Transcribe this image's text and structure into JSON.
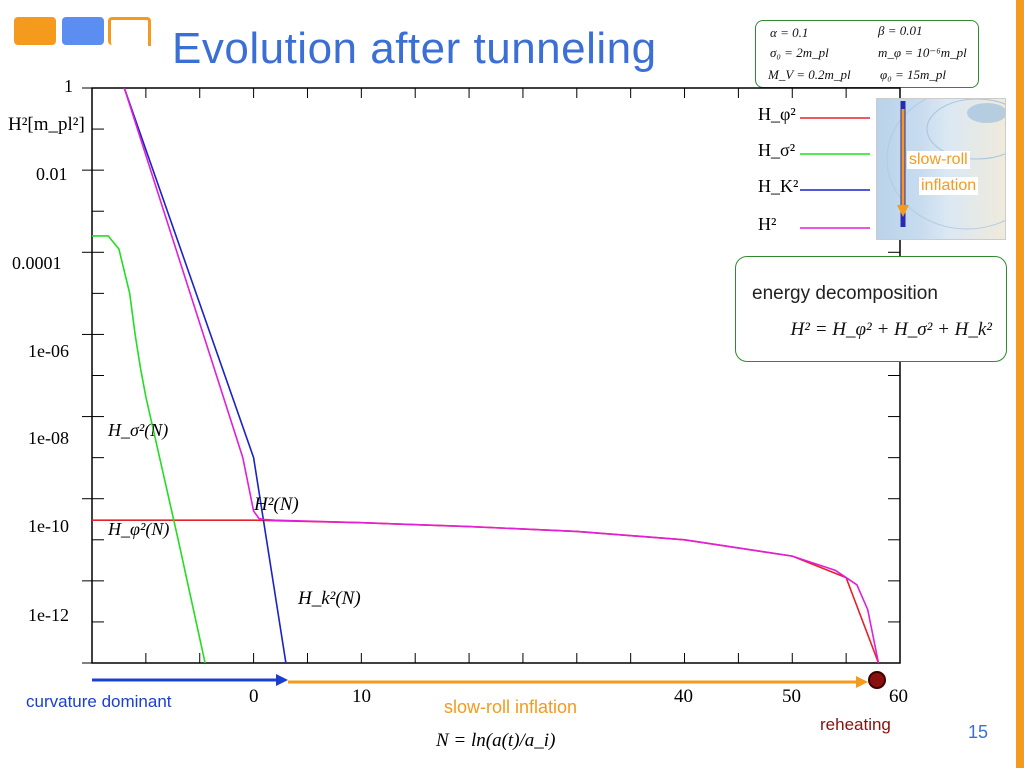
{
  "slide": {
    "title": "Evolution after tunneling",
    "page_number": "15",
    "accent_color": "#f49a1d",
    "title_color": "#3b6fd6"
  },
  "params": {
    "alpha": "α = 0.1",
    "beta": "β = 0.01",
    "sigma0": "σ₀ = 2m_pl",
    "mphi": "m_φ = 10⁻⁶m_pl",
    "mv": "M_V = 0.2m_pl",
    "phi0": "φ₀ = 15m_pl"
  },
  "legend": {
    "items": [
      {
        "label": "H_φ²",
        "color": "#e8202a"
      },
      {
        "label": "H_σ²",
        "color": "#22dd22"
      },
      {
        "label": "H_K²",
        "color": "#1a22c8"
      },
      {
        "label": "H²",
        "color": "#e020d8"
      }
    ]
  },
  "inset": {
    "label_line1": "slow-roll",
    "label_line2": "inflation",
    "icon": "potential-contour-thumbnail-icon"
  },
  "energy_box": {
    "title": "energy decomposition",
    "formula": "H² = H_φ² + H_σ² + H_k²"
  },
  "annotations": {
    "h_sigma": "H_σ²(N)",
    "h_phi": "H_φ²(N)",
    "h_total": "H²(N)",
    "h_k": "H_k²(N)",
    "curvature_dominant": "curvature dominant",
    "slow_roll": "slow-roll inflation",
    "reheating": "reheating",
    "curvature_color": "#1a3fd0",
    "slowroll_color": "#f49a1d",
    "reheating_color": "#8a1010"
  },
  "chart_data": {
    "type": "line",
    "xlabel": "N = ln(a(t)/a_i)",
    "ylabel": "H²[m_pl²]",
    "xlim": [
      -15,
      60
    ],
    "ylim": [
      1e-14,
      1
    ],
    "yscale": "log",
    "x_tick_labels": [
      "0",
      "10",
      "40",
      "50",
      "60"
    ],
    "y_tick_labels": [
      "1",
      "0.01",
      "0.0001",
      "1e-06",
      "1e-08",
      "1e-10",
      "1e-12"
    ],
    "series": [
      {
        "name": "H_φ²",
        "color": "#e8202a",
        "x": [
          -15,
          -5,
          0,
          10,
          20,
          30,
          40,
          50,
          55,
          58
        ],
        "y": [
          3e-11,
          3e-11,
          3e-11,
          2.6e-11,
          2.1e-11,
          1.6e-11,
          1e-11,
          4e-12,
          1.2e-12,
          1e-14
        ]
      },
      {
        "name": "H_σ²",
        "color": "#22dd22",
        "x": [
          -15,
          -13.5,
          -12.5,
          -11.5,
          -11,
          -10.5,
          -10,
          -7,
          -4.5
        ],
        "y": [
          0.00025,
          0.00025,
          0.00012,
          1e-05,
          1e-06,
          1.5e-07,
          3e-08,
          1e-11,
          1e-14
        ]
      },
      {
        "name": "H_K²",
        "color": "#1a22c8",
        "x": [
          -12,
          0,
          3
        ],
        "y": [
          1,
          1e-09,
          1e-14
        ]
      },
      {
        "name": "H²",
        "color": "#e020d8",
        "x": [
          -12,
          -1,
          0,
          0.5,
          1,
          2,
          10,
          20,
          30,
          40,
          50,
          54,
          56,
          57,
          58
        ],
        "y": [
          1,
          1e-09,
          5e-11,
          3.3e-11,
          3.1e-11,
          3e-11,
          2.6e-11,
          2.1e-11,
          1.6e-11,
          1e-11,
          4e-12,
          1.8e-12,
          8e-13,
          2e-13,
          1e-14
        ]
      }
    ]
  }
}
